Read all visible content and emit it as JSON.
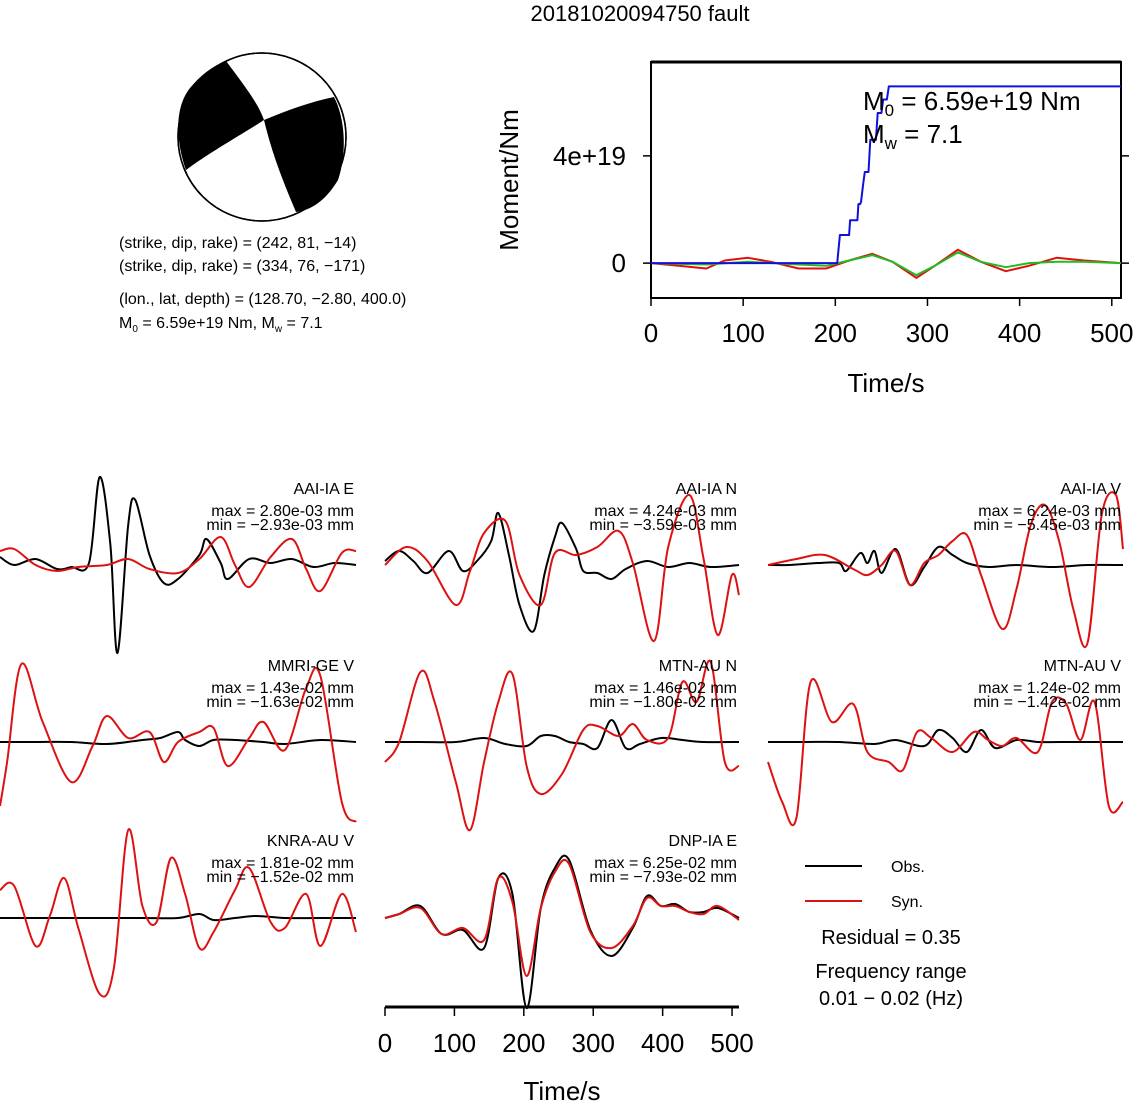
{
  "title": "20181020094750 fault",
  "focal": {
    "line1": "(strike, dip, rake) = (242, 81, −14)",
    "line2": "(strike, dip, rake) = (334, 76, −171)",
    "line3": "(lon., lat, depth) = (128.70, −2.80, 400.0)",
    "m0_label": "M",
    "m0_sub": "0",
    "m0_value": " = 6.59e+19 Nm, M",
    "mw_sub": "w",
    "mw_value": " = 7.1"
  },
  "moment_plot": {
    "ylabel": "Moment/Nm",
    "xlabel": "Time/s",
    "m0_sym": "M",
    "m0_sub": "0",
    "m0_text": " = 6.59e+19 Nm",
    "mw_sym": "M",
    "mw_sub": "w",
    "mw_text": " = 7.1"
  },
  "waveform_axis": {
    "xlabel": "Time/s"
  },
  "legend": {
    "obs_label": "Obs.",
    "syn_label": "Syn.",
    "obs_color": "#000000",
    "syn_color": "#dd1111",
    "residual": "Residual = 0.35",
    "freq_label": "Frequency range",
    "freq_value": "0.01 − 0.02 (Hz)"
  },
  "chart_data": [
    {
      "type": "line",
      "name": "moment-rate",
      "xlabel": "Time/s",
      "ylabel": "Moment/Nm",
      "xlim": [
        0,
        510
      ],
      "ylim": [
        -1.3e+19,
        7.5e+19
      ],
      "x_ticks": [
        0,
        100,
        200,
        300,
        400,
        500
      ],
      "y_ticks": [
        0,
        4e+19
      ],
      "y_tick_labels": [
        "0",
        "4e+19"
      ],
      "annotation": [
        "M0 = 6.59e+19 Nm",
        "Mw = 7.1"
      ],
      "series": [
        {
          "color": "#1010dd",
          "points": [
            [
              0,
              0
            ],
            [
              202,
              0
            ],
            [
              205,
              1.05e+19
            ],
            [
              215,
              1.05e+19
            ],
            [
              216,
              1.6e+19
            ],
            [
              224,
              1.6e+19
            ],
            [
              225,
              2.2e+19
            ],
            [
              227,
              2.2e+19
            ],
            [
              228,
              2.3e+19
            ],
            [
              230,
              2.9e+19
            ],
            [
              232,
              3.4e+19
            ],
            [
              236,
              3.4e+19
            ],
            [
              238,
              4.6e+19
            ],
            [
              244,
              4.6e+19
            ],
            [
              246,
              5.6e+19
            ],
            [
              250,
              5.6e+19
            ],
            [
              252,
              6.1e+19
            ],
            [
              256,
              6.1e+19
            ],
            [
              258,
              6.59e+19
            ],
            [
              510,
              6.59e+19
            ]
          ]
        },
        {
          "color": "#dd1111",
          "points": [
            [
              0,
              0
            ],
            [
              30,
              -1e+18
            ],
            [
              60,
              -2e+18
            ],
            [
              80,
              1e+18
            ],
            [
              105,
              2e+18
            ],
            [
              130,
              5e+17
            ],
            [
              160,
              -2e+18
            ],
            [
              190,
              -2e+18
            ],
            [
              215,
              1e+18
            ],
            [
              240,
              3.5e+18
            ],
            [
              262,
              5e+17
            ],
            [
              288,
              -5.5e+18
            ],
            [
              308,
              -1e+18
            ],
            [
              333,
              5e+18
            ],
            [
              358,
              5e+17
            ],
            [
              385,
              -3e+18
            ],
            [
              410,
              -1e+18
            ],
            [
              440,
              2e+18
            ],
            [
              470,
              1e+18
            ],
            [
              510,
              0
            ]
          ]
        },
        {
          "color": "#22bb22",
          "points": [
            [
              0,
              0
            ],
            [
              60,
              -5e+17
            ],
            [
              105,
              5e+17
            ],
            [
              160,
              -5e+17
            ],
            [
              190,
              -1e+18
            ],
            [
              215,
              1e+18
            ],
            [
              240,
              3e+18
            ],
            [
              262,
              5e+17
            ],
            [
              288,
              -4.5e+18
            ],
            [
              308,
              -1e+18
            ],
            [
              333,
              4e+18
            ],
            [
              358,
              5e+17
            ],
            [
              385,
              -1.5e+18
            ],
            [
              410,
              0.0
            ],
            [
              440,
              5e+17
            ],
            [
              470,
              5e+17
            ],
            [
              510,
              0
            ]
          ]
        }
      ]
    },
    {
      "type": "line",
      "name": "waveforms",
      "x_ticks": [
        0,
        100,
        200,
        300,
        400,
        500
      ],
      "xlim": [
        0,
        510
      ],
      "stations": [
        {
          "station": "AAI-IA E",
          "max": "max = 2.80e-03 mm",
          "min": "min = −2.93e-03 mm"
        },
        {
          "station": "AAI-IA N",
          "max": "max = 4.24e-03 mm",
          "min": "min = −3.59e-03 mm"
        },
        {
          "station": "AAI-IA V",
          "max": "max = 6.24e-03 mm",
          "min": "min = −5.45e-03 mm"
        },
        {
          "station": "MMRI-GE V",
          "max": "max = 1.43e-02 mm",
          "min": "min = −1.63e-02 mm"
        },
        {
          "station": "MTN-AU N",
          "max": "max = 1.46e-02 mm",
          "min": "min = −1.80e-02 mm"
        },
        {
          "station": "MTN-AU V",
          "max": "max = 1.24e-02 mm",
          "min": "min = −1.42e-02 mm"
        },
        {
          "station": "KNRA-AU V",
          "max": "max = 1.81e-02 mm",
          "min": "min = −1.52e-02 mm"
        },
        {
          "station": "DNP-IA E",
          "max": "max = 6.25e-02 mm",
          "min": "min = −7.93e-02 mm"
        }
      ]
    }
  ]
}
